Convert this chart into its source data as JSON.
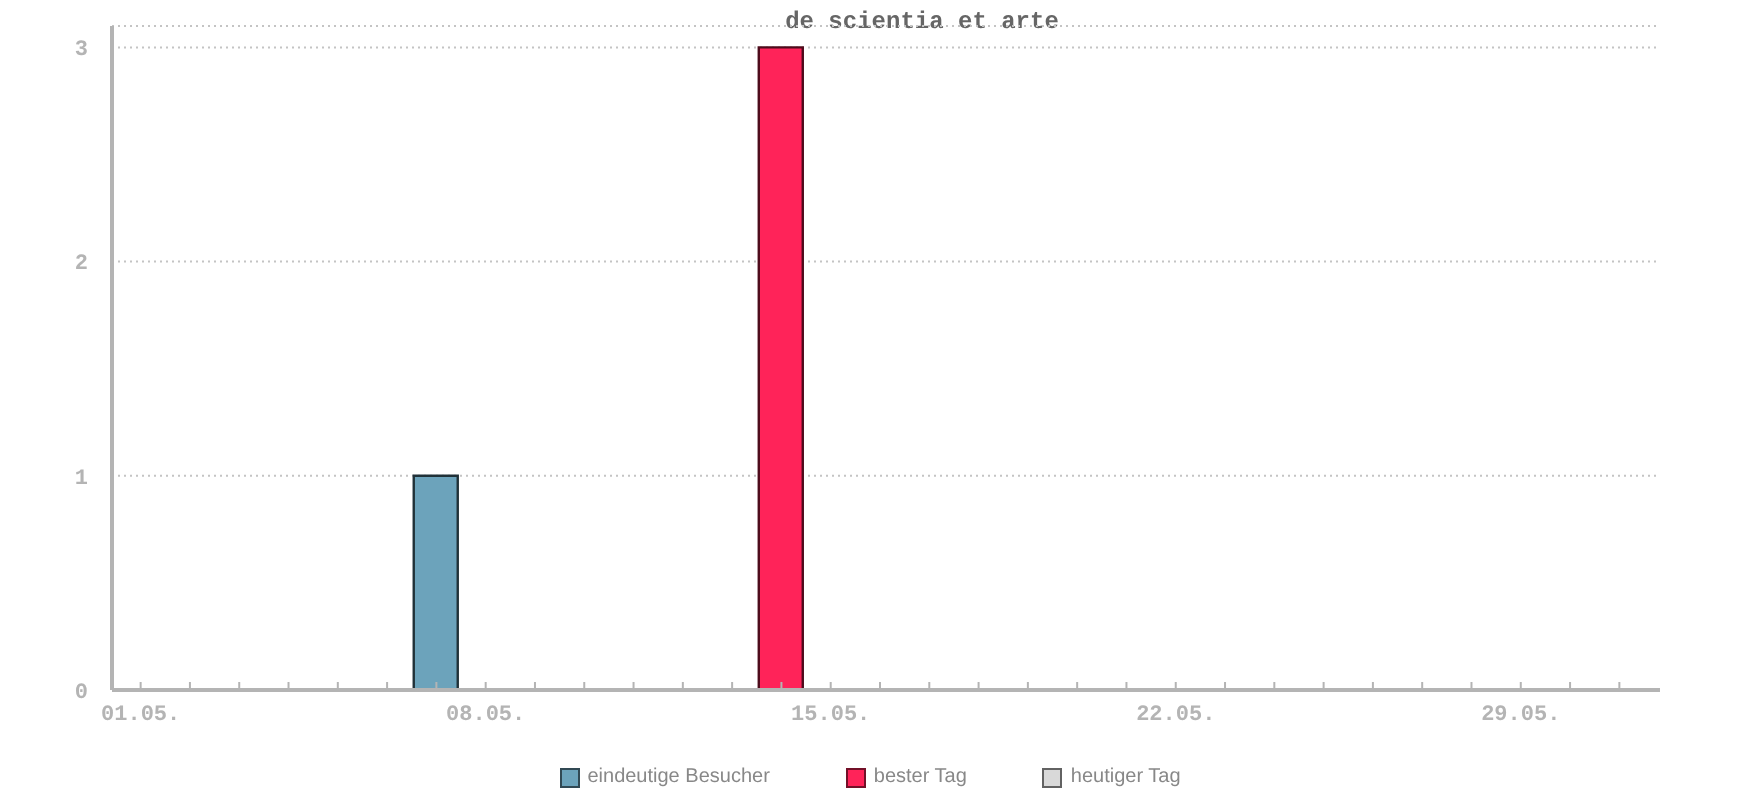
{
  "chart_data": {
    "type": "bar",
    "title": "de scientia et arte",
    "categories": [
      "01.05.",
      null,
      null,
      null,
      null,
      null,
      null,
      "08.05.",
      null,
      null,
      null,
      null,
      null,
      null,
      "15.05.",
      null,
      null,
      null,
      null,
      null,
      null,
      "22.05.",
      null,
      null,
      null,
      null,
      null,
      null,
      "29.05.",
      null,
      null
    ],
    "series": [
      {
        "name": "eindeutige Besucher",
        "color": "#6ca3bb",
        "values": [
          0,
          0,
          0,
          0,
          0,
          0,
          1,
          0,
          0,
          0,
          0,
          0,
          0,
          null,
          0,
          0,
          0,
          0,
          0,
          0,
          0,
          0,
          0,
          0,
          0,
          0,
          0,
          0,
          0,
          0,
          0
        ]
      },
      {
        "name": "bester Tag",
        "color": "#ff2359",
        "values": [
          null,
          null,
          null,
          null,
          null,
          null,
          null,
          null,
          null,
          null,
          null,
          null,
          null,
          3,
          null,
          null,
          null,
          null,
          null,
          null,
          null,
          null,
          null,
          null,
          null,
          null,
          null,
          null,
          null,
          null,
          null
        ]
      },
      {
        "name": "heutiger Tag",
        "color": "#d9d9d9",
        "values": [
          null,
          null,
          null,
          null,
          null,
          null,
          null,
          null,
          null,
          null,
          null,
          null,
          null,
          null,
          null,
          null,
          null,
          null,
          null,
          null,
          null,
          null,
          null,
          null,
          null,
          null,
          null,
          null,
          null,
          null,
          null
        ]
      }
    ],
    "ylim": [
      0,
      3.1
    ],
    "yticks": [
      0,
      1,
      2,
      3
    ],
    "grid": "y",
    "legend": "bottom"
  }
}
